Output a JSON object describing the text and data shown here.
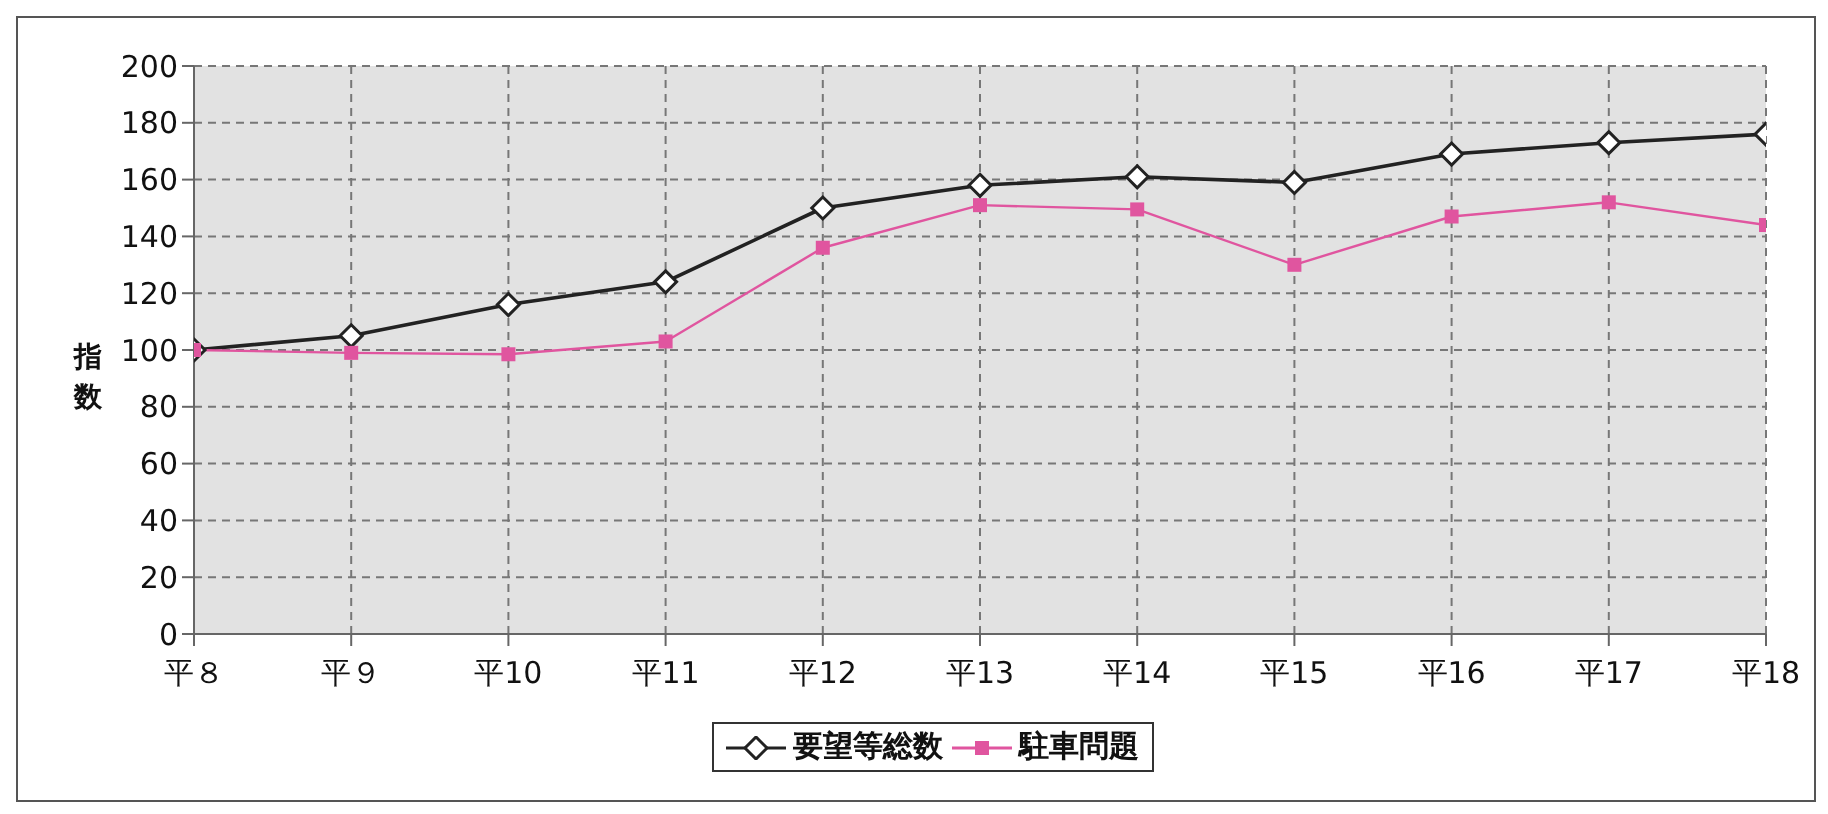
{
  "chart_data": {
    "type": "line",
    "ylabel": "指数",
    "categories": [
      "平８",
      "平９",
      "平10",
      "平11",
      "平12",
      "平13",
      "平14",
      "平15",
      "平16",
      "平17",
      "平18"
    ],
    "series": [
      {
        "name": "要望等総数",
        "color": "#222222",
        "marker": "diamond",
        "values": [
          100,
          105,
          116,
          124,
          150,
          158,
          161,
          159,
          169,
          173,
          176
        ]
      },
      {
        "name": "駐車問題",
        "color": "#e0559f",
        "marker": "square",
        "values": [
          100,
          99,
          98.5,
          103,
          136,
          151,
          149.5,
          130,
          147,
          152,
          144
        ]
      }
    ],
    "ylim": [
      0,
      200
    ],
    "yticks": [
      0,
      20,
      40,
      60,
      80,
      100,
      120,
      140,
      160,
      180,
      200
    ],
    "grid": true,
    "legend": "bottom"
  }
}
